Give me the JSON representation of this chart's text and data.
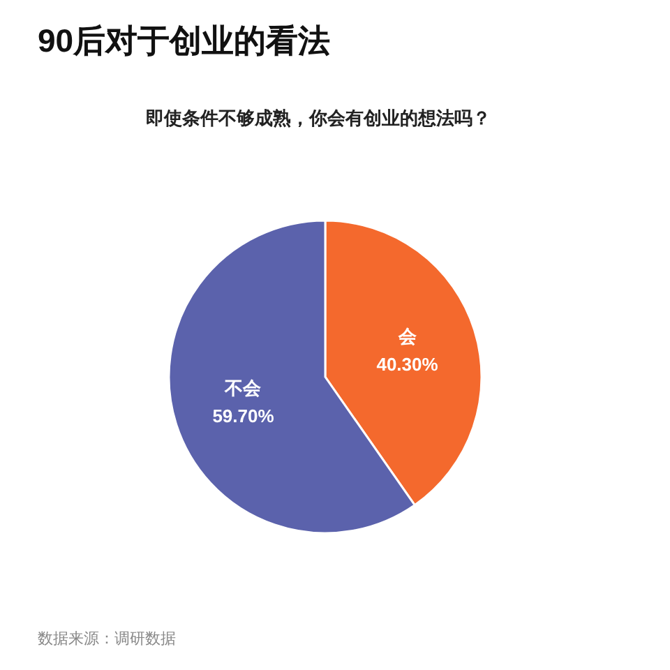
{
  "chart_data": {
    "type": "pie",
    "title": "90后对于创业的看法",
    "subtitle": "即使条件不够成熟，你会有创业的想法吗？",
    "categories": [
      "会",
      "不会"
    ],
    "values": [
      40.3,
      59.7
    ],
    "colors": [
      "#f4692d",
      "#5b62ac"
    ],
    "value_labels": [
      "40.30%",
      "59.70%"
    ],
    "annotations": [
      "数据来源：调研数据"
    ]
  }
}
